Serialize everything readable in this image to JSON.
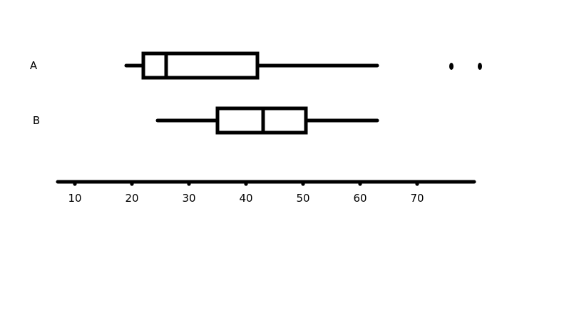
{
  "colors": {
    "ink": "#000000",
    "background": "#ffffff"
  },
  "chart_data": {
    "type": "boxplot",
    "orientation": "horizontal",
    "title": "",
    "xlabel": "",
    "ylabel": "",
    "xlim": [
      7,
      80
    ],
    "x_ticks": [
      10,
      20,
      30,
      40,
      50,
      60,
      70
    ],
    "x_tick_labels": [
      "10",
      "20",
      "30",
      "40",
      "50",
      "60",
      "70"
    ],
    "grid": false,
    "categories": [
      "A",
      "B"
    ],
    "boxes": [
      {
        "category": "A",
        "whisker_low": 19,
        "q1": 22,
        "median": 26,
        "q3": 42,
        "whisker_high": 63,
        "outliers": [
          76,
          81
        ]
      },
      {
        "category": "B",
        "whisker_low": 24.5,
        "q1": 35,
        "median": 43,
        "q3": 50.5,
        "whisker_high": 63,
        "outliers": []
      }
    ]
  }
}
